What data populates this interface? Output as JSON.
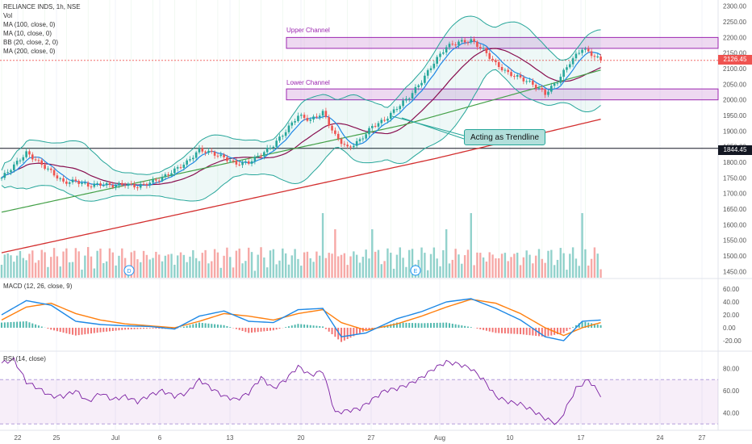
{
  "legend": {
    "symbol": "RELIANCE INDS, 1h, NSE",
    "vol": "Vol",
    "ma100": "MA (100, close, 0)",
    "ma10": "MA (10, close, 0)",
    "bb": "BB (20, close, 2, 0)",
    "ma200": "MA (200, close, 0)"
  },
  "annotations": {
    "upper_channel": "Upper Channel",
    "lower_channel": "Lower Channel",
    "trendline_note": "Acting as Trendline",
    "event_d": "D",
    "event_e": "E"
  },
  "macd_label": "MACD (12, 26, close, 9)",
  "rsi_label": "RSI (14, close)",
  "colors": {
    "up": "#26a69a",
    "down": "#ef5350",
    "ma10": "#1e88e5",
    "ma100": "#43a047",
    "ma200": "#d32f2f",
    "bb": "#26a69a",
    "bb_basis": "#880e4f",
    "channel": "#ce93d8",
    "macd": "#1e88e5",
    "signal": "#ff7f0e",
    "rsi": "#7b1fa2"
  },
  "chart_data": [
    {
      "type": "candlestick",
      "price_axis_ticks": [
        1450,
        1500,
        1550,
        1600,
        1650,
        1700,
        1750,
        1800,
        1850,
        1900,
        1950,
        2000,
        2050,
        2100,
        2150,
        2200,
        2250,
        2300
      ],
      "price_tick_labels": [
        "1450.00",
        "1500.00",
        "1550.00",
        "1600.00",
        "1650.00",
        "1700.00",
        "1750.00",
        "1800.00",
        "1850.00",
        "1900.00",
        "1950.00",
        "2000.00",
        "2050.00",
        "2100.00",
        "2150.00",
        "2200.00",
        "2250.00",
        "2300.00"
      ],
      "ylim": [
        1430,
        2320
      ],
      "date_labels": [
        "22",
        "25",
        "Jul",
        "6",
        "13",
        "20",
        "27",
        "Aug",
        "10",
        "17",
        "24",
        "27"
      ],
      "last_price": 2126.45,
      "last_price_label": "2126.45",
      "horizontal_line": 1844.45,
      "horizontal_line_label": "1844.45",
      "upper_channel": [
        2165,
        2200
      ],
      "lower_channel": [
        2000,
        2035
      ],
      "close_points": [
        [
          0,
          1750
        ],
        [
          4,
          1790
        ],
        [
          8,
          1830
        ],
        [
          12,
          1800
        ],
        [
          16,
          1770
        ],
        [
          20,
          1735
        ],
        [
          24,
          1740
        ],
        [
          28,
          1725
        ],
        [
          32,
          1730
        ],
        [
          36,
          1725
        ],
        [
          40,
          1730
        ],
        [
          44,
          1722
        ],
        [
          48,
          1735
        ],
        [
          52,
          1750
        ],
        [
          56,
          1775
        ],
        [
          60,
          1800
        ],
        [
          64,
          1840
        ],
        [
          68,
          1830
        ],
        [
          72,
          1815
        ],
        [
          76,
          1795
        ],
        [
          80,
          1800
        ],
        [
          84,
          1825
        ],
        [
          88,
          1855
        ],
        [
          92,
          1900
        ],
        [
          96,
          1950
        ],
        [
          100,
          1935
        ],
        [
          104,
          1960
        ],
        [
          108,
          1885
        ],
        [
          112,
          1845
        ],
        [
          116,
          1870
        ],
        [
          120,
          1915
        ],
        [
          124,
          1935
        ],
        [
          128,
          1975
        ],
        [
          132,
          2010
        ],
        [
          136,
          2060
        ],
        [
          140,
          2120
        ],
        [
          144,
          2170
        ],
        [
          148,
          2185
        ],
        [
          152,
          2190
        ],
        [
          156,
          2160
        ],
        [
          160,
          2115
        ],
        [
          164,
          2085
        ],
        [
          168,
          2070
        ],
        [
          172,
          2050
        ],
        [
          176,
          2020
        ],
        [
          180,
          2060
        ],
        [
          184,
          2120
        ],
        [
          188,
          2165
        ],
        [
          192,
          2140
        ],
        [
          194,
          2126
        ]
      ],
      "total_bars": 232,
      "volume_spikes": [
        [
          108,
          "up"
        ],
        [
          104,
          "down"
        ],
        [
          120,
          "up"
        ],
        [
          144,
          "down"
        ],
        [
          152,
          "up"
        ],
        [
          188,
          "up"
        ]
      ]
    },
    {
      "type": "line",
      "name": "MACD",
      "ylim": [
        -35,
        75
      ],
      "ticks": [
        -20,
        0,
        20,
        40,
        60
      ],
      "tick_labels": [
        "-20.00",
        "0.00",
        "20.00",
        "40.00",
        "60.00"
      ],
      "macd_points": [
        [
          0,
          20
        ],
        [
          8,
          42
        ],
        [
          16,
          35
        ],
        [
          24,
          10
        ],
        [
          32,
          5
        ],
        [
          40,
          3
        ],
        [
          48,
          2
        ],
        [
          56,
          -2
        ],
        [
          64,
          18
        ],
        [
          72,
          26
        ],
        [
          80,
          10
        ],
        [
          88,
          8
        ],
        [
          96,
          28
        ],
        [
          104,
          30
        ],
        [
          110,
          -14
        ],
        [
          118,
          -8
        ],
        [
          128,
          14
        ],
        [
          136,
          25
        ],
        [
          144,
          40
        ],
        [
          152,
          45
        ],
        [
          160,
          30
        ],
        [
          168,
          12
        ],
        [
          176,
          -14
        ],
        [
          182,
          -20
        ],
        [
          188,
          10
        ],
        [
          194,
          12
        ]
      ],
      "signal_points": [
        [
          0,
          12
        ],
        [
          8,
          32
        ],
        [
          16,
          38
        ],
        [
          24,
          22
        ],
        [
          32,
          12
        ],
        [
          40,
          6
        ],
        [
          48,
          3
        ],
        [
          56,
          0
        ],
        [
          64,
          10
        ],
        [
          72,
          22
        ],
        [
          80,
          18
        ],
        [
          88,
          12
        ],
        [
          96,
          22
        ],
        [
          104,
          28
        ],
        [
          110,
          8
        ],
        [
          118,
          -4
        ],
        [
          128,
          6
        ],
        [
          136,
          18
        ],
        [
          144,
          32
        ],
        [
          152,
          44
        ],
        [
          160,
          38
        ],
        [
          168,
          22
        ],
        [
          176,
          0
        ],
        [
          182,
          -12
        ],
        [
          188,
          0
        ],
        [
          194,
          8
        ]
      ]
    },
    {
      "type": "line",
      "name": "RSI",
      "ylim": [
        25,
        95
      ],
      "ticks": [
        40,
        60,
        80
      ],
      "tick_labels": [
        "40.00",
        "60.00",
        "80.00"
      ],
      "band": [
        30,
        70
      ],
      "rsi_points": [
        [
          0,
          85
        ],
        [
          4,
          88
        ],
        [
          8,
          68
        ],
        [
          12,
          62
        ],
        [
          16,
          55
        ],
        [
          20,
          55
        ],
        [
          24,
          60
        ],
        [
          28,
          50
        ],
        [
          32,
          58
        ],
        [
          36,
          52
        ],
        [
          40,
          55
        ],
        [
          44,
          50
        ],
        [
          48,
          56
        ],
        [
          52,
          60
        ],
        [
          56,
          55
        ],
        [
          60,
          58
        ],
        [
          64,
          70
        ],
        [
          68,
          62
        ],
        [
          72,
          55
        ],
        [
          76,
          52
        ],
        [
          80,
          58
        ],
        [
          84,
          72
        ],
        [
          88,
          62
        ],
        [
          92,
          70
        ],
        [
          96,
          82
        ],
        [
          100,
          74
        ],
        [
          104,
          78
        ],
        [
          108,
          40
        ],
        [
          112,
          42
        ],
        [
          116,
          44
        ],
        [
          120,
          52
        ],
        [
          124,
          60
        ],
        [
          128,
          62
        ],
        [
          132,
          66
        ],
        [
          136,
          72
        ],
        [
          140,
          80
        ],
        [
          144,
          86
        ],
        [
          148,
          84
        ],
        [
          152,
          80
        ],
        [
          156,
          70
        ],
        [
          160,
          55
        ],
        [
          164,
          50
        ],
        [
          168,
          48
        ],
        [
          172,
          42
        ],
        [
          176,
          35
        ],
        [
          180,
          30
        ],
        [
          182,
          40
        ],
        [
          186,
          62
        ],
        [
          190,
          70
        ],
        [
          194,
          56
        ]
      ]
    }
  ]
}
